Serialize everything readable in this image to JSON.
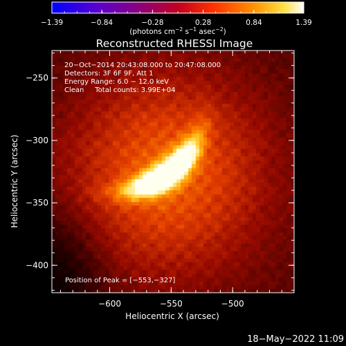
{
  "chart_data": {
    "type": "heatmap",
    "title": "Reconstructed RHESSI Image",
    "xlabel": "Heliocentric X (arcsec)",
    "ylabel": "Heliocentric Y (arcsec)",
    "xlim": [
      -647,
      -450
    ],
    "ylim": [
      -422,
      -228
    ],
    "x_ticks": [
      -600,
      -550,
      -500
    ],
    "x_tick_labels": [
      "−600",
      "−550",
      "−500"
    ],
    "y_ticks": [
      -250,
      -300,
      -350,
      -400
    ],
    "y_tick_labels": [
      "−250",
      "−300",
      "−350",
      "−400"
    ],
    "colorbar": {
      "min": -1.39,
      "max": 1.39,
      "ticks": [
        -1.39,
        -0.84,
        -0.28,
        0.28,
        0.84,
        1.39
      ],
      "tick_labels": [
        "−1.39",
        "−0.84",
        "−0.28",
        "0.28",
        "0.84",
        "1.39"
      ],
      "unit_label_parts": [
        "(photons cm",
        "−2",
        " s",
        "−1",
        " asec",
        "−2",
        ")"
      ]
    },
    "annotations": [
      "20−Oct−2014 20:43:08.000 to 20:47:08.000",
      "Detectors: 3F 6F 9F, Att 1",
      "Energy Range: 6.0 − 12.0 keV",
      "Clean     Total counts: 3.99E+04"
    ],
    "peak_text": "Position of Peak = [−553,−327]",
    "peak": {
      "x": -553,
      "y": -327,
      "value": 1.39
    },
    "source": {
      "major_sigma_arcsec": 24,
      "minor_sigma_arcsec": 7,
      "angle_deg": -36,
      "curvature": 0.006
    }
  },
  "footer": {
    "date": "18−May−2022 11:09"
  }
}
